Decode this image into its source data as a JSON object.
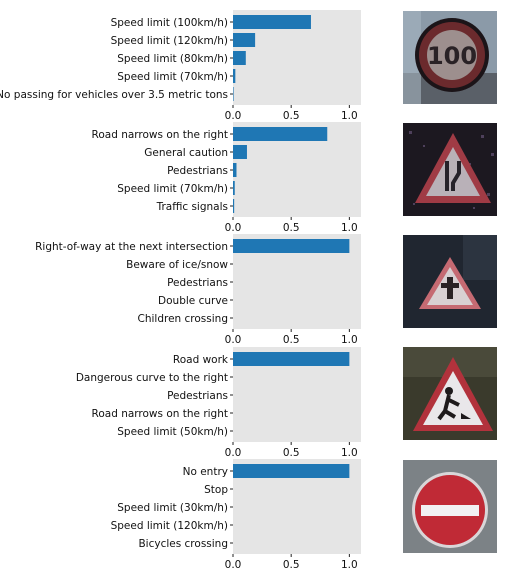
{
  "style": {
    "bar_color": "#1f77b4",
    "panel_bg": "#e5e5e5"
  },
  "chart_data": [
    {
      "type": "bar",
      "orientation": "horizontal",
      "categories": [
        "Speed limit (100km/h)",
        "Speed limit (120km/h)",
        "Speed limit (80km/h)",
        "Speed limit (70km/h)",
        "No passing for vehicles over 3.5 metric tons"
      ],
      "values": [
        0.67,
        0.19,
        0.11,
        0.02,
        0.005
      ],
      "xlim": [
        0,
        1.1
      ],
      "xticks": [
        "0.0",
        "0.5",
        "1.0"
      ],
      "show_xticks": true
    },
    {
      "type": "bar",
      "orientation": "horizontal",
      "categories": [
        "Road narrows on the right",
        "General caution",
        "Pedestrians",
        "Speed limit (70km/h)",
        "Traffic signals"
      ],
      "values": [
        0.81,
        0.12,
        0.03,
        0.015,
        0.01
      ],
      "xlim": [
        0,
        1.1
      ],
      "xticks": [
        "0.0",
        "0.5",
        "1.0"
      ],
      "show_xticks": true
    },
    {
      "type": "bar",
      "orientation": "horizontal",
      "categories": [
        "Right-of-way at the next intersection",
        "Beware of ice/snow",
        "Pedestrians",
        "Double curve",
        "Children crossing"
      ],
      "values": [
        1.0,
        0.0,
        0.0,
        0.0,
        0.0
      ],
      "xlim": [
        0,
        1.1
      ],
      "xticks": [
        "0.0",
        "0.5",
        "1.0"
      ],
      "show_xticks": true
    },
    {
      "type": "bar",
      "orientation": "horizontal",
      "categories": [
        "Road work",
        "Dangerous curve to the right",
        "Pedestrians",
        "Road narrows on the right",
        "Speed limit (50km/h)"
      ],
      "values": [
        1.0,
        0.0,
        0.0,
        0.0,
        0.0
      ],
      "xlim": [
        0,
        1.1
      ],
      "xticks": [
        "0.0",
        "0.5",
        "1.0"
      ],
      "show_xticks": true
    },
    {
      "type": "bar",
      "orientation": "horizontal",
      "categories": [
        "No entry",
        "Stop",
        "Speed limit (30km/h)",
        "Speed limit (120km/h)",
        "Bicycles crossing"
      ],
      "values": [
        1.0,
        0.0,
        0.0,
        0.0,
        0.0
      ],
      "xlim": [
        0,
        1.1
      ],
      "xticks": [
        "0.0",
        "0.5",
        "1.0"
      ],
      "show_xticks": true
    }
  ],
  "images": [
    {
      "name": "speed-limit-100-sign",
      "text": "100"
    },
    {
      "name": "road-narrows-sign"
    },
    {
      "name": "right-of-way-sign"
    },
    {
      "name": "road-work-sign"
    },
    {
      "name": "no-entry-sign"
    }
  ]
}
